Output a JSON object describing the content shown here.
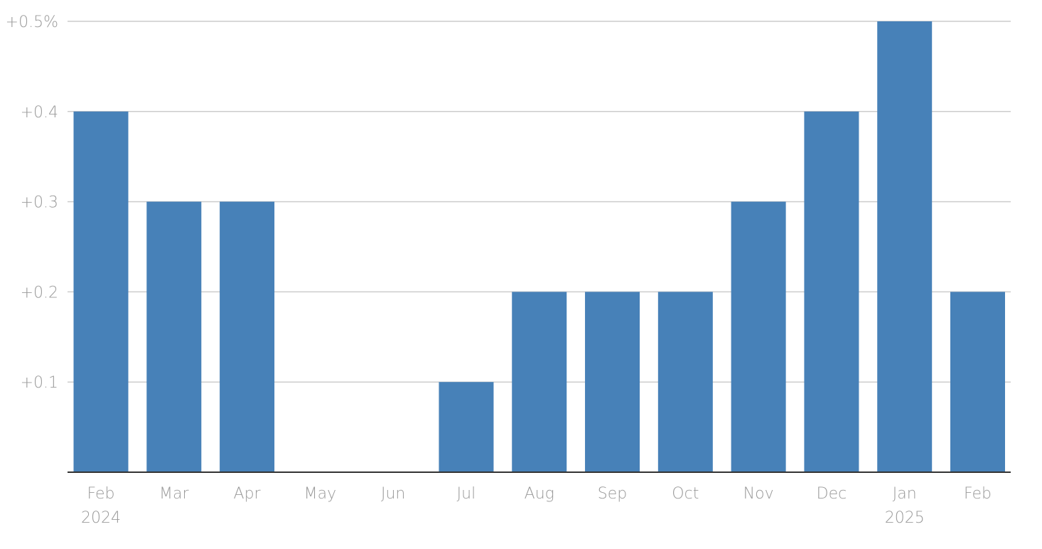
{
  "chart_data": {
    "type": "bar",
    "categories": [
      "Feb",
      "Mar",
      "Apr",
      "May",
      "Jun",
      "Jul",
      "Aug",
      "Sep",
      "Oct",
      "Nov",
      "Dec",
      "Jan",
      "Feb"
    ],
    "category_sublabels": [
      "2024",
      "",
      "",
      "",
      "",
      "",
      "",
      "",
      "",
      "",
      "",
      "2025",
      ""
    ],
    "values": [
      0.4,
      0.3,
      0.3,
      0.0,
      0.0,
      0.1,
      0.2,
      0.2,
      0.2,
      0.3,
      0.4,
      0.5,
      0.2
    ],
    "ylim": [
      0,
      0.5
    ],
    "yticks": [
      {
        "value": 0.1,
        "label": "+0.1"
      },
      {
        "value": 0.2,
        "label": "+0.2"
      },
      {
        "value": 0.3,
        "label": "+0.3"
      },
      {
        "value": 0.4,
        "label": "+0.4"
      },
      {
        "value": 0.5,
        "label": "+0.5%"
      }
    ],
    "title": "",
    "xlabel": "",
    "ylabel": "",
    "grid": true,
    "colors": {
      "bar": "#4781b8",
      "grid": "#cccccc",
      "axis": "#333333",
      "tick_text": "#9a9a9a"
    }
  }
}
